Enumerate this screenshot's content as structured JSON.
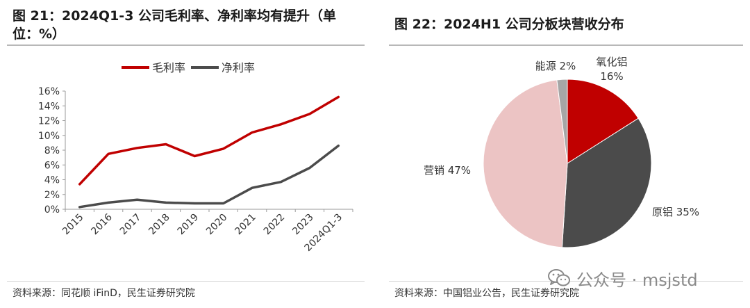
{
  "left": {
    "title_line1": "图 21：2024Q1-3 公司毛利率、净利率均有提升（单",
    "title_line2": "位：%）",
    "source": "资料来源：同花顺 iFinD，民生证券研究院"
  },
  "right": {
    "title": "图 22：2024H1 公司分板块营收分布",
    "source": "资料来源：中国铝业公告，民生证券研究院"
  },
  "watermark": {
    "text": "公众号 · msjstd",
    "icon": "wechat-icon"
  },
  "chart_data": [
    {
      "type": "line",
      "title": "",
      "x": [
        "2015",
        "2016",
        "2017",
        "2018",
        "2019",
        "2020",
        "2021",
        "2022",
        "2023",
        "2024Q1-3"
      ],
      "yticks": [
        "0%",
        "2%",
        "4%",
        "6%",
        "8%",
        "10%",
        "12%",
        "14%",
        "16%"
      ],
      "ylim": [
        0,
        16
      ],
      "grid": false,
      "legend_position": "top",
      "series": [
        {
          "name": "毛利率",
          "color": "#c00000",
          "values": [
            3.4,
            7.5,
            8.3,
            8.8,
            7.2,
            8.2,
            10.4,
            11.5,
            12.9,
            15.2
          ]
        },
        {
          "name": "净利率",
          "color": "#4b4b4b",
          "values": [
            0.3,
            0.9,
            1.3,
            0.9,
            0.8,
            0.8,
            2.9,
            3.7,
            5.6,
            8.6
          ]
        }
      ]
    },
    {
      "type": "pie",
      "title": "",
      "slices": [
        {
          "label": "氧化铝",
          "value": 16,
          "value_label": "16%",
          "color": "#c00000"
        },
        {
          "label": "原铝",
          "value": 35,
          "value_label": "35%",
          "color": "#4b4b4b"
        },
        {
          "label": "营销",
          "value": 47,
          "value_label": "47%",
          "color": "#ecc4c4"
        },
        {
          "label": "能源",
          "value": 2,
          "value_label": "2%",
          "color": "#a6a6a6"
        }
      ]
    }
  ]
}
